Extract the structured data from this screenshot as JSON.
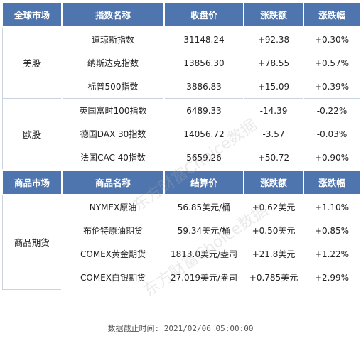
{
  "header_stocks": [
    "全球市场",
    "指数名称",
    "收盘价",
    "涨跌额",
    "涨跌幅"
  ],
  "groups": [
    {
      "name": "美股",
      "rows": [
        [
          "道琼斯指数",
          "31148.24",
          "+92.38",
          "+0.30%"
        ],
        [
          "纳斯达克指数",
          "13856.30",
          "+78.55",
          "+0.57%"
        ],
        [
          "标普500指数",
          "3886.83",
          "+15.09",
          "+0.39%"
        ]
      ]
    },
    {
      "name": "欧股",
      "rows": [
        [
          "英国富时100指数",
          "6489.33",
          "-14.39",
          "-0.22%"
        ],
        [
          "德国DAX 30指数",
          "14056.72",
          "-3.57",
          "-0.03%"
        ],
        [
          "法国CAC 40指数",
          "5659.26",
          "+50.72",
          "+0.90%"
        ]
      ]
    }
  ],
  "header_commodities": [
    "商品市场",
    "商品名称",
    "结算价",
    "涨跌额",
    "涨跌幅"
  ],
  "commodities": {
    "name": "商品期货",
    "rows": [
      [
        "NYMEX原油",
        "56.85美元/桶",
        "+0.62美元",
        "+1.10%"
      ],
      [
        "布伦特原油期货",
        "59.34美元/桶",
        "+0.50美元",
        "+0.85%"
      ],
      [
        "COMEX黄金期货",
        "1813.0美元/盎司",
        "+21.8美元",
        "+1.22%"
      ],
      [
        "COMEX白银期货",
        "27.019美元/盎司",
        "+0.785美元",
        "+2.99%"
      ]
    ]
  },
  "footer": "数据截止时间: 2021/02/06 05:00:00",
  "watermark": "东方财富Choice数据",
  "colors": {
    "header_bg": "#4e75ad",
    "header_text": "#ffffff",
    "border": "#c9d3e2"
  }
}
